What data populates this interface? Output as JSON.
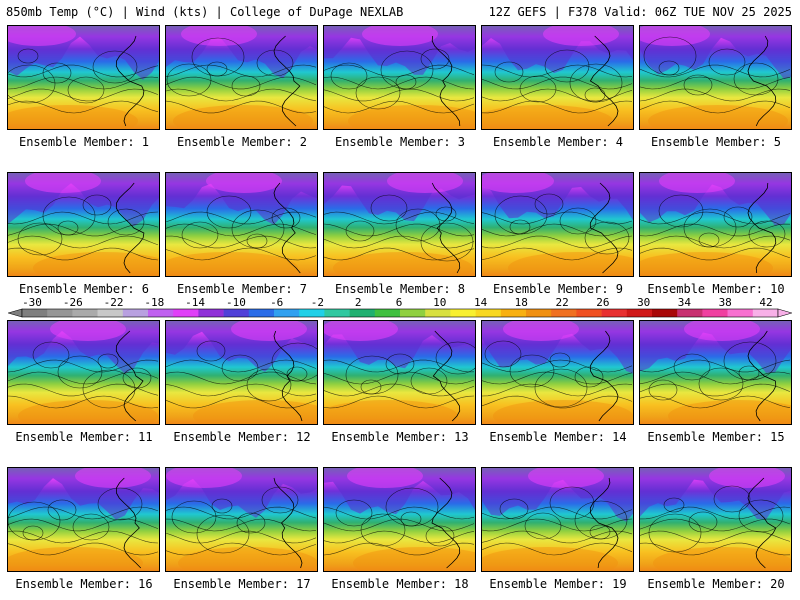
{
  "header": {
    "left": "850mb Temp (°C) | Wind (kts) | College of DuPage NEXLAB",
    "right": "12Z GEFS | F378 Valid: 06Z TUE NOV 25 2025"
  },
  "panel_label_prefix": "Ensemble Member:",
  "members": [
    "1",
    "2",
    "3",
    "4",
    "5",
    "6",
    "7",
    "8",
    "9",
    "10",
    "11",
    "12",
    "13",
    "14",
    "15",
    "16",
    "17",
    "18",
    "19",
    "20"
  ],
  "colorbar": {
    "ticks": [
      "-30",
      "-26",
      "-22",
      "-18",
      "-14",
      "-10",
      "-6",
      "-2",
      "2",
      "6",
      "10",
      "14",
      "18",
      "22",
      "26",
      "30",
      "34",
      "38",
      "42"
    ],
    "colors": [
      "#7f7f7f",
      "#969696",
      "#aaaaaa",
      "#c8c8c8",
      "#b8a0e0",
      "#c060f0",
      "#e040f8",
      "#9030d8",
      "#5040d8",
      "#2a6ce8",
      "#30a0f0",
      "#20d0e8",
      "#30c8a0",
      "#20b070",
      "#40c040",
      "#90d040",
      "#d8e040",
      "#f8f030",
      "#f8d820",
      "#f8b010",
      "#f09010",
      "#f07020",
      "#f05020",
      "#e83030",
      "#d01818",
      "#a80808",
      "#c83070",
      "#f040a0",
      "#f870d0",
      "#f8b0e8"
    ]
  }
}
